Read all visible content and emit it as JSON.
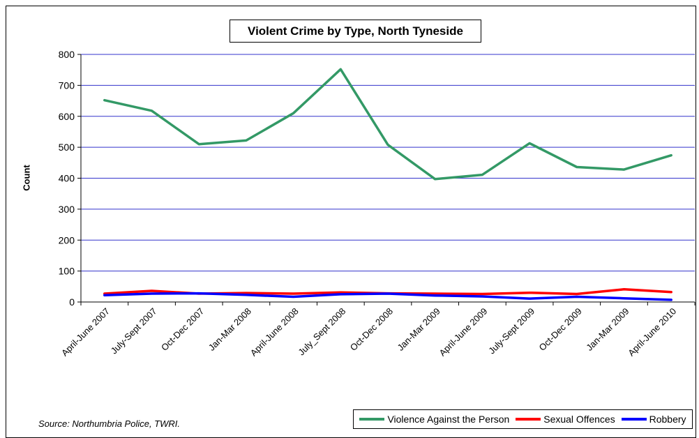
{
  "chart_data": {
    "type": "line",
    "title": "Violent Crime by Type, North Tyneside",
    "xlabel": "",
    "ylabel": "Count",
    "ylim": [
      0,
      800
    ],
    "yticks": [
      "0",
      "100",
      "200",
      "300",
      "400",
      "500",
      "600",
      "700",
      "800"
    ],
    "grid": true,
    "legend_position": "bottom-right",
    "categories": [
      "April-June 2007",
      "July-Sept 2007",
      "Oct-Dec 2007",
      "Jan-Mar 2008",
      "April-June 2008",
      "July_Sept 2008",
      "Oct-Dec 2008",
      "Jan-Mar 2009",
      "April-June 2009",
      "July-Sept 2009",
      "Oct-Dec 2009",
      "Jan-Mar 2009",
      "April-June 2010"
    ],
    "series": [
      {
        "name": "Violence Against the Person",
        "color": "#339966",
        "values": [
          652,
          618,
          510,
          522,
          610,
          752,
          508,
          397,
          411,
          513,
          436,
          428,
          474
        ]
      },
      {
        "name": "Sexual Offences",
        "color": "#ff0000",
        "values": [
          27,
          36,
          27,
          29,
          27,
          31,
          28,
          27,
          26,
          30,
          26,
          41,
          32
        ]
      },
      {
        "name": "Robbery",
        "color": "#0000ff",
        "values": [
          22,
          27,
          28,
          23,
          17,
          25,
          27,
          21,
          18,
          11,
          17,
          12,
          7
        ]
      }
    ],
    "colors": {
      "grid": "#3333cc",
      "axis": "#000000"
    },
    "source": "Source: Northumbria Police, TWRI."
  }
}
